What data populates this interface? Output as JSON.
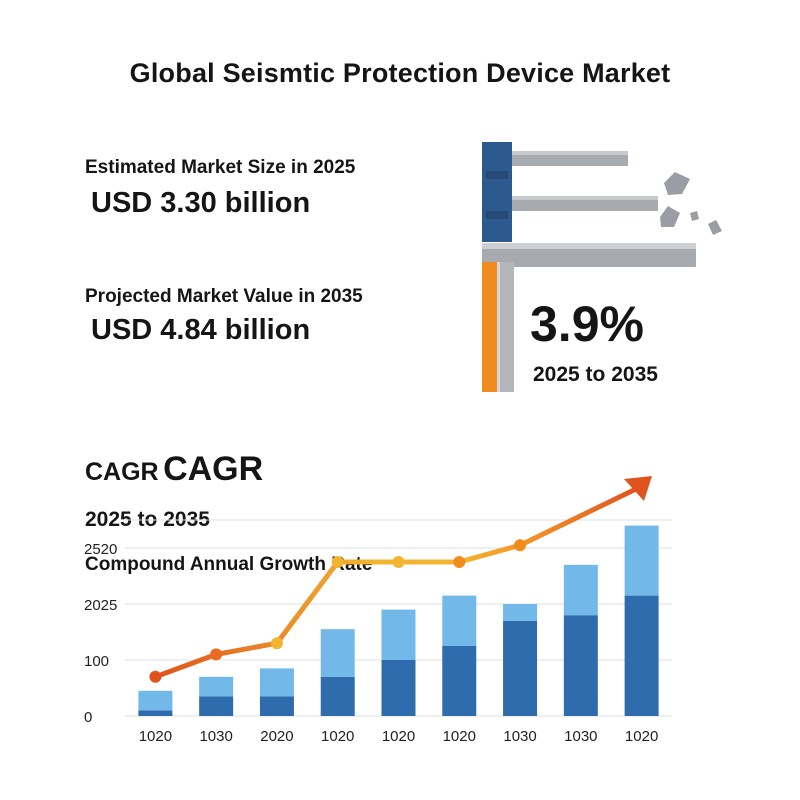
{
  "title": "Global Seismtic Protection Device Market",
  "estimated": {
    "label": "Estimated Market Size in 2025",
    "value": "USD 3.30 billion"
  },
  "projected": {
    "label": "Projected Market Value in 2035",
    "value": "USD 4.84 billion"
  },
  "cagr": {
    "value": "3.9%",
    "period": "2025 to 2035"
  },
  "chart_header": {
    "title_small": "CAGR",
    "title_large": "CAGR",
    "period": "2025 to 2035",
    "subtitle": "Compound Annual Growth Rate"
  },
  "colors": {
    "bar_dark": "#2f6cae",
    "bar_light": "#72b8e8",
    "line_start": "#e0531d",
    "line_mid": "#f2b531",
    "steel": "#9a9ea4",
    "column_blue": "#2c5a8e",
    "accent_orange": "#f08c1e"
  },
  "chart_data": {
    "type": "bar",
    "categories": [
      "1020",
      "1030",
      "2020",
      "1020",
      "1020",
      "1020",
      "1030",
      "1030",
      "1020"
    ],
    "y_tick_labels": [
      "0",
      "100",
      "2025",
      "2520"
    ],
    "y_tick_positions": [
      0,
      1,
      2,
      3
    ],
    "series": [
      {
        "values": [
          0.1,
          0.35,
          0.35,
          0.7,
          1.0,
          1.25,
          1.7,
          1.8,
          2.15
        ]
      },
      {
        "values": [
          0.35,
          0.35,
          0.5,
          0.85,
          0.9,
          0.9,
          0.3,
          0.9,
          1.25
        ]
      }
    ],
    "stacked": true,
    "line": {
      "values": [
        0.7,
        1.1,
        1.3,
        2.75,
        2.75,
        2.75,
        3.05,
        null,
        null
      ],
      "arrow": true
    },
    "ylim": [
      0,
      3.5
    ],
    "grid": true
  }
}
